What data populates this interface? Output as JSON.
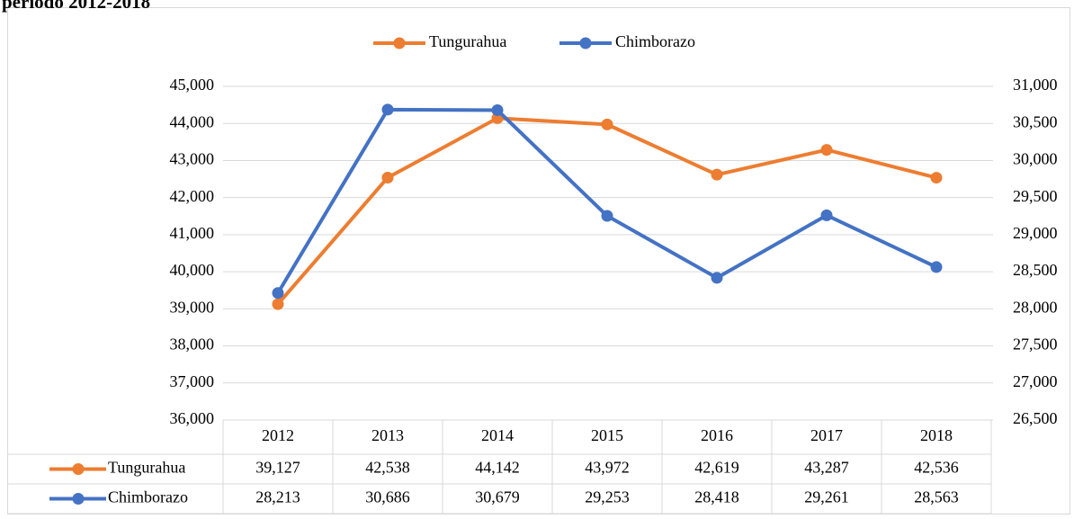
{
  "chart_data": {
    "type": "line",
    "title": "periodo 2012-2018",
    "categories": [
      "2012",
      "2013",
      "2014",
      "2015",
      "2016",
      "2017",
      "2018"
    ],
    "series": [
      {
        "name": "Tungurahua",
        "color": "#ed7d31",
        "axis": "y",
        "values": [
          39127,
          42538,
          44142,
          43972,
          42619,
          43287,
          42536
        ],
        "value_labels": [
          "39,127",
          "42,538",
          "44,142",
          "43,972",
          "42,619",
          "43,287",
          "42,536"
        ]
      },
      {
        "name": "Chimborazo",
        "color": "#4472c4",
        "axis": "y2",
        "values": [
          28213,
          30686,
          30679,
          29253,
          28418,
          29261,
          28563
        ],
        "value_labels": [
          "28,213",
          "30,686",
          "30,679",
          "29,253",
          "28,418",
          "29,261",
          "28,563"
        ]
      }
    ],
    "ylim": [
      36000,
      45000
    ],
    "yticks": [
      {
        "value": 36000,
        "label": "36,000"
      },
      {
        "value": 37000,
        "label": "37,000"
      },
      {
        "value": 38000,
        "label": "38,000"
      },
      {
        "value": 39000,
        "label": "39,000"
      },
      {
        "value": 40000,
        "label": "40,000"
      },
      {
        "value": 41000,
        "label": "41,000"
      },
      {
        "value": 42000,
        "label": "42,000"
      },
      {
        "value": 43000,
        "label": "43,000"
      },
      {
        "value": 44000,
        "label": "44,000"
      },
      {
        "value": 45000,
        "label": "45,000"
      }
    ],
    "y2lim": [
      26500,
      31000
    ],
    "y2ticks": [
      {
        "value": 26500,
        "label": "26,500"
      },
      {
        "value": 27000,
        "label": "27,000"
      },
      {
        "value": 27500,
        "label": "27,500"
      },
      {
        "value": 28000,
        "label": "28,000"
      },
      {
        "value": 28500,
        "label": "28,500"
      },
      {
        "value": 29000,
        "label": "29,000"
      },
      {
        "value": 29500,
        "label": "29,500"
      },
      {
        "value": 30000,
        "label": "30,000"
      },
      {
        "value": 30500,
        "label": "30,500"
      },
      {
        "value": 31000,
        "label": "31,000"
      }
    ],
    "grid": true,
    "legend": "top",
    "data_table": true
  }
}
